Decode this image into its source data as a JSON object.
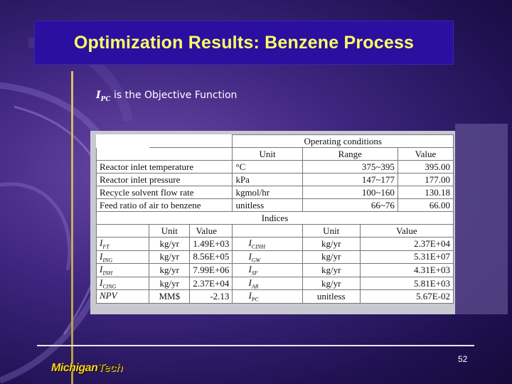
{
  "slide": {
    "title": "Optimization Results: Benzene Process",
    "objective_symbol": "I",
    "objective_sub": "PC",
    "objective_text": " is the Objective Function",
    "page_number": "52",
    "logo_part1": "Michigan",
    "logo_part2": "Tech",
    "title_color": "#ffff66",
    "title_bar_color": "#2a0fa0"
  },
  "operating": {
    "header": "Operating conditions",
    "col_unit": "Unit",
    "col_range": "Range",
    "col_value": "Value",
    "rows": [
      {
        "name": "Reactor inlet temperature",
        "unit": "°C",
        "range": "375~395",
        "value": "395.00"
      },
      {
        "name": "Reactor inlet pressure",
        "unit": "kPa",
        "range": "147~177",
        "value": "177.00"
      },
      {
        "name": "Recycle solvent flow rate",
        "unit": "kgmol/hr",
        "range": "100~160",
        "value": "130.18"
      },
      {
        "name": "Feed ratio of air to benzene",
        "unit": "unitless",
        "range": "66~76",
        "value": "66.00"
      }
    ]
  },
  "indices": {
    "header": "Indices",
    "col_unit": "Unit",
    "col_value": "Value",
    "rows": [
      {
        "s1": "I",
        "s1sub": "FT",
        "u1": "kg/yr",
        "v1": "1.49E+03",
        "s2": "I",
        "s2sub": "CINH",
        "u2": "kg/yr",
        "v2": "2.37E+04"
      },
      {
        "s1": "I",
        "s1sub": "ING",
        "u1": "kg/yr",
        "v1": "8.56E+05",
        "s2": "I",
        "s2sub": "GW",
        "u2": "kg/yr",
        "v2": "5.31E+07"
      },
      {
        "s1": "I",
        "s1sub": "INH",
        "u1": "kg/yr",
        "v1": "7.99E+06",
        "s2": "I",
        "s2sub": "SF",
        "u2": "kg/yr",
        "v2": "4.31E+03"
      },
      {
        "s1": "I",
        "s1sub": "CING",
        "u1": "kg/yr",
        "v1": "2.37E+04",
        "s2": "I",
        "s2sub": "AR",
        "u2": "kg/yr",
        "v2": "5.81E+03"
      },
      {
        "s1": "NPV",
        "s1sub": "",
        "u1": "MM$",
        "v1": "-2.13",
        "s2": "I",
        "s2sub": "PC",
        "u2": "unitless",
        "v2": "5.67E-02"
      }
    ]
  }
}
